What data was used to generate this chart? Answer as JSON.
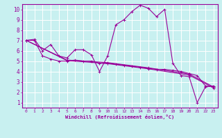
{
  "title": "",
  "xlabel": "Windchill (Refroidissement éolien,°C)",
  "ylabel": "",
  "bg_color": "#c8f0f0",
  "line_color": "#990099",
  "grid_color": "#ffffff",
  "axis_color": "#990099",
  "xlim": [
    -0.5,
    23.5
  ],
  "ylim": [
    0.5,
    10.5
  ],
  "xticks": [
    0,
    1,
    2,
    3,
    4,
    5,
    6,
    7,
    8,
    9,
    10,
    11,
    12,
    13,
    14,
    15,
    16,
    17,
    18,
    19,
    20,
    21,
    22,
    23
  ],
  "yticks": [
    1,
    2,
    3,
    4,
    5,
    6,
    7,
    8,
    9,
    10
  ],
  "lines": [
    [
      0,
      7.0,
      1,
      7.1,
      2,
      6.0,
      3,
      6.6,
      4,
      5.5,
      5,
      5.3,
      6,
      6.1,
      7,
      6.1,
      8,
      5.6,
      9,
      4.0,
      10,
      5.5,
      11,
      8.5,
      12,
      9.0,
      13,
      9.8,
      14,
      10.4,
      15,
      10.1,
      16,
      9.3,
      17,
      10.0,
      18,
      4.8,
      19,
      3.6,
      20,
      3.5,
      21,
      1.0,
      22,
      2.5,
      23,
      2.6
    ],
    [
      0,
      7.0,
      1,
      7.0,
      2,
      5.5,
      3,
      5.2,
      4,
      5.0,
      5,
      5.0,
      6,
      5.1,
      7,
      5.0,
      8,
      5.0,
      9,
      4.8,
      10,
      4.8,
      11,
      4.7,
      12,
      4.6,
      13,
      4.5,
      14,
      4.4,
      15,
      4.3,
      16,
      4.2,
      17,
      4.2,
      18,
      4.1,
      19,
      4.0,
      20,
      3.8,
      21,
      3.6,
      22,
      2.6,
      23,
      2.5
    ],
    [
      0,
      7.0,
      5,
      5.1,
      10,
      4.85,
      15,
      4.35,
      20,
      3.75,
      23,
      2.5
    ],
    [
      0,
      7.0,
      5,
      5.05,
      10,
      4.75,
      15,
      4.25,
      20,
      3.65,
      23,
      2.4
    ]
  ]
}
